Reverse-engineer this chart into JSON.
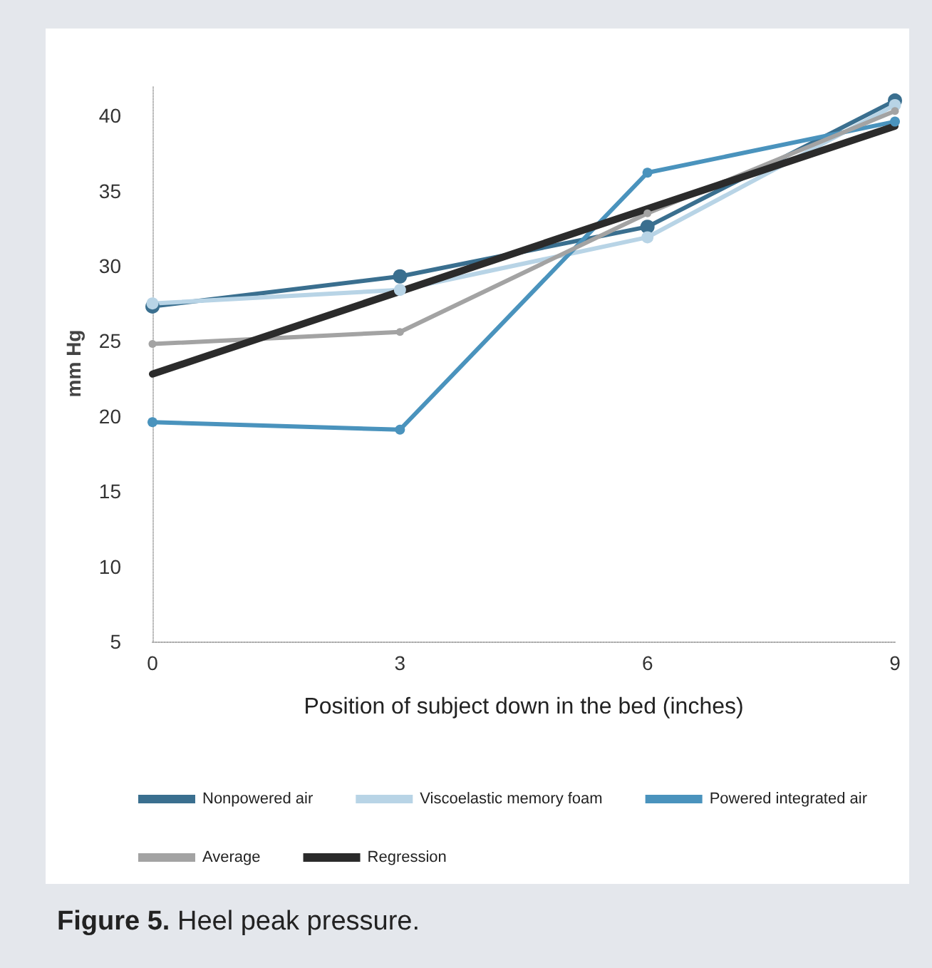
{
  "chart_data": {
    "type": "line",
    "title": "Figure 5. Heel peak pressure.",
    "xlabel": "Position of subject down in the bed (inches)",
    "ylabel": "mm Hg",
    "x": [
      0,
      3,
      6,
      9
    ],
    "series": [
      {
        "name": "Nonpowered air",
        "color": "#3a6f8f",
        "values": [
          27.3,
          29.3,
          32.6,
          41.0
        ]
      },
      {
        "name": "Viscoelastic memory foam",
        "color": "#b8d4e6",
        "values": [
          27.5,
          28.4,
          31.9,
          40.7
        ]
      },
      {
        "name": "Powered integrated air",
        "color": "#4a93bd",
        "values": [
          19.6,
          19.1,
          36.2,
          39.6
        ]
      },
      {
        "name": "Average",
        "color": "#a3a3a3",
        "values": [
          24.8,
          25.6,
          33.5,
          40.3
        ]
      },
      {
        "name": "Regression",
        "color": "#2b2b2b",
        "x": [
          0,
          9
        ],
        "values": [
          22.8,
          39.3
        ],
        "marker": "none"
      }
    ],
    "xlim": [
      0,
      9
    ],
    "xticks": [
      0,
      3,
      6,
      9
    ],
    "ylim": [
      5,
      42
    ],
    "yticks": [
      5,
      10,
      15,
      20,
      25,
      30,
      35,
      40
    ],
    "grid": false,
    "legend": "bottom",
    "marker": "circle",
    "line_style": "solid"
  }
}
